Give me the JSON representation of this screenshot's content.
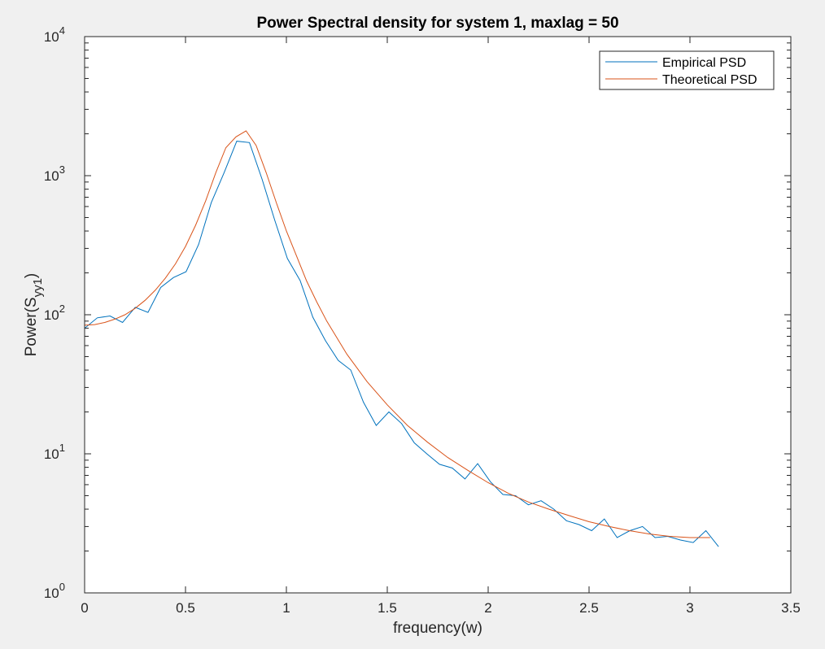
{
  "chart_data": {
    "type": "line",
    "title": "Power Spectral density for system 1, maxlag = 50",
    "xlabel": "frequency(w)",
    "ylabel": {
      "main": "Power(S",
      "sub": "yy1",
      "close": ")"
    },
    "xlim": [
      0,
      3.5
    ],
    "ylim": [
      1,
      10000
    ],
    "yscale": "log",
    "grid": false,
    "legend_position": "top-right",
    "xticks": [
      {
        "v": 0,
        "label": "0"
      },
      {
        "v": 0.5,
        "label": "0.5"
      },
      {
        "v": 1,
        "label": "1"
      },
      {
        "v": 1.5,
        "label": "1.5"
      },
      {
        "v": 2,
        "label": "2"
      },
      {
        "v": 2.5,
        "label": "2.5"
      },
      {
        "v": 3,
        "label": "3"
      },
      {
        "v": 3.5,
        "label": "3.5"
      }
    ],
    "yticks": [
      {
        "v": 1,
        "base": "10",
        "exp": "0"
      },
      {
        "v": 10,
        "base": "10",
        "exp": "1"
      },
      {
        "v": 100,
        "base": "10",
        "exp": "2"
      },
      {
        "v": 1000,
        "base": "10",
        "exp": "3"
      },
      {
        "v": 10000,
        "base": "10",
        "exp": "4"
      }
    ],
    "series": [
      {
        "name": "Empirical PSD",
        "color": "#0072BD",
        "x": [
          0,
          0.063,
          0.126,
          0.188,
          0.251,
          0.314,
          0.377,
          0.44,
          0.503,
          0.565,
          0.628,
          0.691,
          0.754,
          0.817,
          0.88,
          0.942,
          1.005,
          1.068,
          1.131,
          1.194,
          1.257,
          1.319,
          1.382,
          1.445,
          1.508,
          1.571,
          1.634,
          1.696,
          1.759,
          1.822,
          1.885,
          1.948,
          2.011,
          2.073,
          2.136,
          2.199,
          2.262,
          2.325,
          2.388,
          2.45,
          2.513,
          2.576,
          2.639,
          2.702,
          2.765,
          2.827,
          2.89,
          2.953,
          3.016,
          3.079,
          3.142
        ],
        "y": [
          80,
          95,
          98,
          88,
          113,
          104,
          157,
          185,
          204,
          320,
          640,
          1050,
          1770,
          1730,
          940,
          480,
          254,
          176,
          96,
          65,
          47,
          40,
          23.5,
          16,
          20,
          16.5,
          12,
          10,
          8.4,
          7.9,
          6.6,
          8.5,
          6.3,
          5.1,
          5.0,
          4.3,
          4.6,
          4.0,
          3.3,
          3.1,
          2.8,
          3.4,
          2.5,
          2.8,
          3.0,
          2.5,
          2.55,
          2.4,
          2.3,
          2.8,
          2.15
        ]
      },
      {
        "name": "Theoretical PSD",
        "color": "#D95319",
        "x": [
          0,
          0.05,
          0.1,
          0.15,
          0.2,
          0.25,
          0.3,
          0.35,
          0.4,
          0.45,
          0.5,
          0.55,
          0.6,
          0.65,
          0.7,
          0.75,
          0.8,
          0.85,
          0.9,
          0.95,
          1.0,
          1.05,
          1.1,
          1.15,
          1.2,
          1.3,
          1.4,
          1.5,
          1.6,
          1.7,
          1.8,
          1.9,
          2.0,
          2.1,
          2.2,
          2.3,
          2.4,
          2.5,
          2.6,
          2.7,
          2.8,
          2.9,
          3.0,
          3.1
        ],
        "y": [
          84,
          85,
          88,
          93,
          100,
          111,
          127,
          150,
          183,
          232,
          310,
          440,
          660,
          1050,
          1590,
          1900,
          2100,
          1650,
          1050,
          640,
          400,
          265,
          175,
          124,
          90,
          52,
          33,
          22.5,
          16,
          12.1,
          9.4,
          7.6,
          6.2,
          5.2,
          4.5,
          4.0,
          3.6,
          3.25,
          3.0,
          2.8,
          2.65,
          2.55,
          2.5,
          2.5
        ]
      }
    ]
  }
}
